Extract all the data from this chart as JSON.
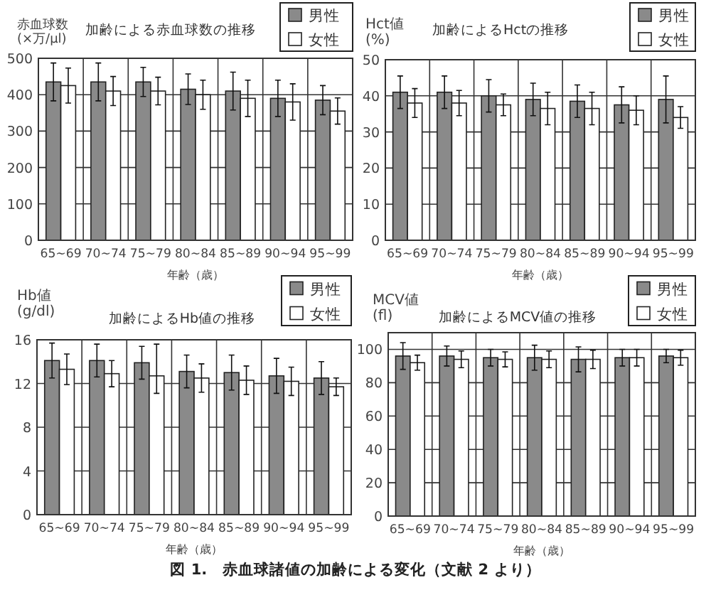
{
  "chart_data": [
    {
      "type": "bar",
      "title": "加齢による赤血球数の推移",
      "ylabel": "赤血球数\n(×万/μl)",
      "xlabel": "年齢（歳）",
      "categories": [
        "65~69",
        "70~74",
        "75~79",
        "80~84",
        "85~89",
        "90~94",
        "95~99"
      ],
      "series": [
        {
          "name": "男性",
          "color": "#8a8a8a",
          "values": [
            435,
            435,
            435,
            415,
            410,
            390,
            385
          ],
          "errors": [
            52,
            52,
            40,
            42,
            52,
            50,
            40
          ]
        },
        {
          "name": "女性",
          "color": "#ffffff",
          "values": [
            425,
            410,
            410,
            400,
            390,
            380,
            355
          ],
          "errors": [
            48,
            40,
            38,
            40,
            50,
            50,
            36
          ]
        }
      ],
      "ylim": [
        0,
        500
      ],
      "yticks": [
        0,
        100,
        200,
        300,
        400,
        500
      ],
      "grid": true,
      "legend": "top right"
    },
    {
      "type": "bar",
      "title": "加齢によるHctの推移",
      "ylabel": "Hct値\n(%)",
      "xlabel": "年齢（歳）",
      "categories": [
        "65~69",
        "70~74",
        "75~79",
        "80~84",
        "85~89",
        "90~94",
        "95~99"
      ],
      "series": [
        {
          "name": "男性",
          "color": "#8a8a8a",
          "values": [
            41,
            41,
            40,
            39,
            38.5,
            37.5,
            39
          ],
          "errors": [
            4.5,
            4.5,
            4.5,
            4.5,
            4.5,
            5,
            6.5
          ]
        },
        {
          "name": "女性",
          "color": "#ffffff",
          "values": [
            38,
            38,
            37.5,
            36.5,
            36.5,
            36,
            34
          ],
          "errors": [
            4,
            3.5,
            3,
            4.5,
            4.5,
            4,
            3
          ]
        }
      ],
      "ylim": [
        0,
        50
      ],
      "yticks": [
        0,
        10,
        20,
        30,
        40,
        50
      ],
      "grid": true,
      "legend": "top right"
    },
    {
      "type": "bar",
      "title": "加齢によるHb値の推移",
      "ylabel": "Hb値\n(g/dl)",
      "xlabel": "年齢（歳）",
      "categories": [
        "65~69",
        "70~74",
        "75~79",
        "80~84",
        "85~89",
        "90~94",
        "95~99"
      ],
      "series": [
        {
          "name": "男性",
          "color": "#8a8a8a",
          "values": [
            14.1,
            14.1,
            13.9,
            13.1,
            13,
            12.7,
            12.5
          ],
          "errors": [
            1.6,
            1.5,
            1.5,
            1.5,
            1.6,
            1.6,
            1.5
          ]
        },
        {
          "name": "女性",
          "color": "#ffffff",
          "values": [
            13.3,
            12.9,
            12.7,
            12.5,
            12.3,
            12.2,
            11.7
          ],
          "errors": [
            1.4,
            1.2,
            [
              11.1,
              15.6
            ],
            1.3,
            1.3,
            1.3,
            0.8
          ]
        }
      ],
      "ylim": [
        0,
        16
      ],
      "yticks": [
        0,
        4,
        8,
        12,
        16
      ],
      "grid": true,
      "legend": "top right"
    },
    {
      "type": "bar",
      "title": "加齢によるMCV値の推移",
      "ylabel": "MCV値\n(fl)",
      "xlabel": "年齢（歳）",
      "categories": [
        "65~69",
        "70~74",
        "75~79",
        "80~84",
        "85~89",
        "90~94",
        "95~99"
      ],
      "series": [
        {
          "name": "男性",
          "color": "#8a8a8a",
          "values": [
            96,
            96,
            95,
            95,
            94,
            95,
            96
          ],
          "errors": [
            8,
            6,
            5,
            7.5,
            7.5,
            5,
            4
          ]
        },
        {
          "name": "女性",
          "color": "#ffffff",
          "values": [
            92,
            94,
            94,
            94,
            94,
            95,
            95
          ],
          "errors": [
            4.5,
            5,
            4.5,
            5,
            5.5,
            5,
            4.5
          ]
        }
      ],
      "ylim": [
        0,
        110
      ],
      "yticks": [
        0,
        20,
        40,
        60,
        80,
        100
      ],
      "grid": true,
      "legend": "top right",
      "annotations": [
        "図 1.　赤血球諸値の加齢による変化（文献 2 より）"
      ]
    }
  ]
}
